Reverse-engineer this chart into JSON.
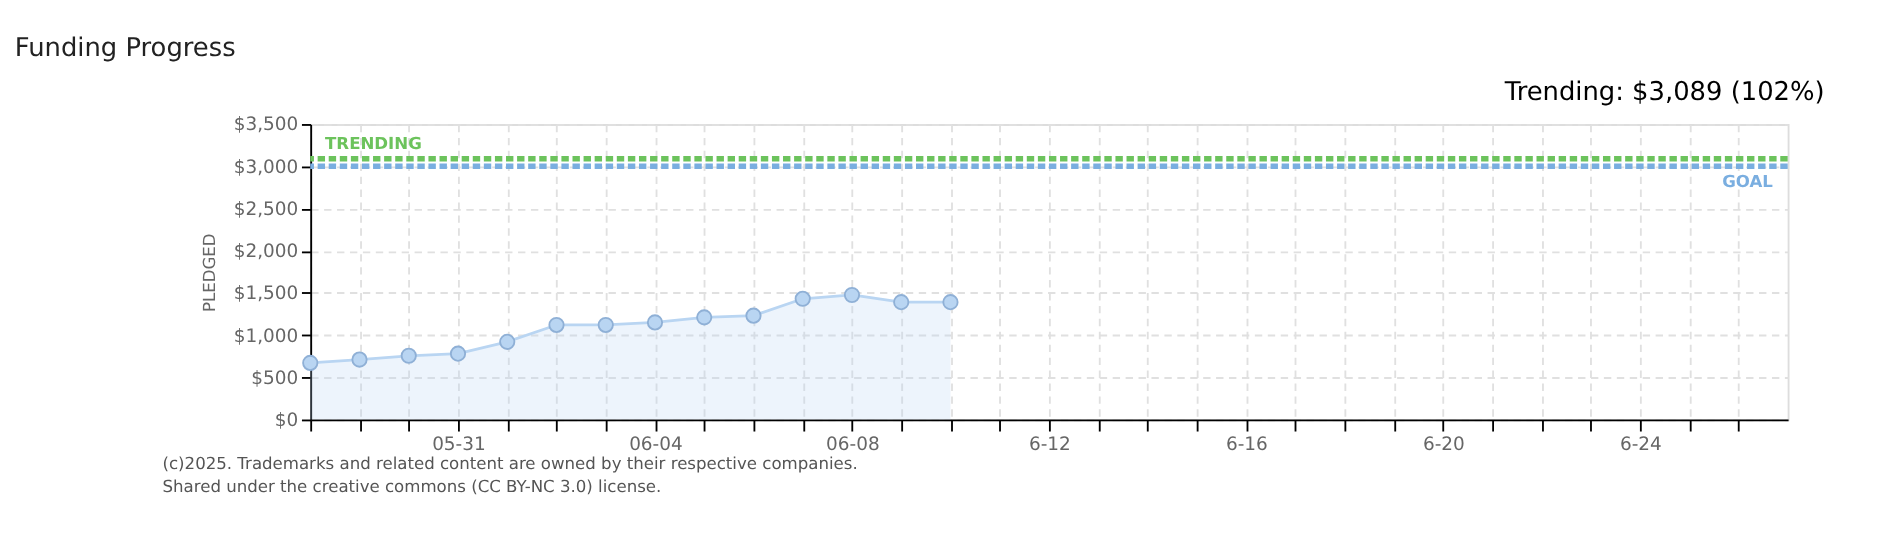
{
  "chart_data": {
    "type": "area",
    "title": "Funding Progress",
    "ylabel": "PLEDGED",
    "annotations": [
      "Trending: $3,089 (102%)",
      "(c)2025. Trademarks and related content are owned by their respective companies.",
      "Shared under the creative commons (CC BY-NC 3.0) license."
    ],
    "x": [
      "2025-05-28",
      "2025-05-29",
      "2025-05-30",
      "2025-05-31",
      "2025-06-01",
      "2025-06-02",
      "2025-06-03",
      "2025-06-04",
      "2025-06-05",
      "2025-06-06",
      "2025-06-07",
      "2025-06-08",
      "2025-06-09",
      "2025-06-10"
    ],
    "series": [
      {
        "color": "#b9d5f2",
        "values": [
          670,
          710,
          755,
          780,
          920,
          1120,
          1120,
          1150,
          1210,
          1230,
          1430,
          1475,
          1390,
          1390
        ]
      }
    ],
    "marker": "circle",
    "grid": true,
    "xlim": [
      "2025-05-28",
      "2025-06-27"
    ],
    "xticks": [
      {
        "value": "2025-05-28",
        "label": null
      },
      {
        "value": "2025-05-29",
        "label": null
      },
      {
        "value": "2025-05-30",
        "label": null
      },
      {
        "value": "2025-05-31",
        "label": "05-31"
      },
      {
        "value": "2025-06-01",
        "label": null
      },
      {
        "value": "2025-06-02",
        "label": null
      },
      {
        "value": "2025-06-03",
        "label": null
      },
      {
        "value": "2025-06-04",
        "label": "06-04"
      },
      {
        "value": "2025-06-05",
        "label": null
      },
      {
        "value": "2025-06-06",
        "label": null
      },
      {
        "value": "2025-06-07",
        "label": null
      },
      {
        "value": "2025-06-08",
        "label": "06-08"
      },
      {
        "value": "2025-06-09",
        "label": null
      },
      {
        "value": "2025-06-10",
        "label": null
      },
      {
        "value": "2025-06-11",
        "label": null
      },
      {
        "value": "2025-06-12",
        "label": "6-12"
      },
      {
        "value": "2025-06-13",
        "label": null
      },
      {
        "value": "2025-06-14",
        "label": null
      },
      {
        "value": "2025-06-15",
        "label": null
      },
      {
        "value": "2025-06-16",
        "label": "6-16"
      },
      {
        "value": "2025-06-17",
        "label": null
      },
      {
        "value": "2025-06-18",
        "label": null
      },
      {
        "value": "2025-06-19",
        "label": null
      },
      {
        "value": "2025-06-20",
        "label": "6-20"
      },
      {
        "value": "2025-06-21",
        "label": null
      },
      {
        "value": "2025-06-22",
        "label": null
      },
      {
        "value": "2025-06-23",
        "label": null
      },
      {
        "value": "2025-06-24",
        "label": "6-24"
      },
      {
        "value": "2025-06-25",
        "label": null
      },
      {
        "value": "2025-06-26",
        "label": null
      }
    ],
    "ylim": [
      0,
      3500
    ],
    "yticks": [
      {
        "value": 0,
        "label": "$0"
      },
      {
        "value": 500,
        "label": "$500"
      },
      {
        "value": 1000,
        "label": "$1,000"
      },
      {
        "value": 1500,
        "label": "$1,500"
      },
      {
        "value": 2000,
        "label": "$2,000"
      },
      {
        "value": 2500,
        "label": "$2,500"
      },
      {
        "value": 3000,
        "label": "$3,000"
      },
      {
        "value": 3500,
        "label": "$3,500"
      }
    ],
    "ref_lines": [
      {
        "axis": "y",
        "value": 3089,
        "label": "TRENDING",
        "color": "#6cc35c",
        "line_style": "dashed"
      },
      {
        "axis": "y",
        "value": 3000,
        "label": "GOAL",
        "color": "#7aaee0",
        "line_style": "dashed"
      }
    ]
  }
}
